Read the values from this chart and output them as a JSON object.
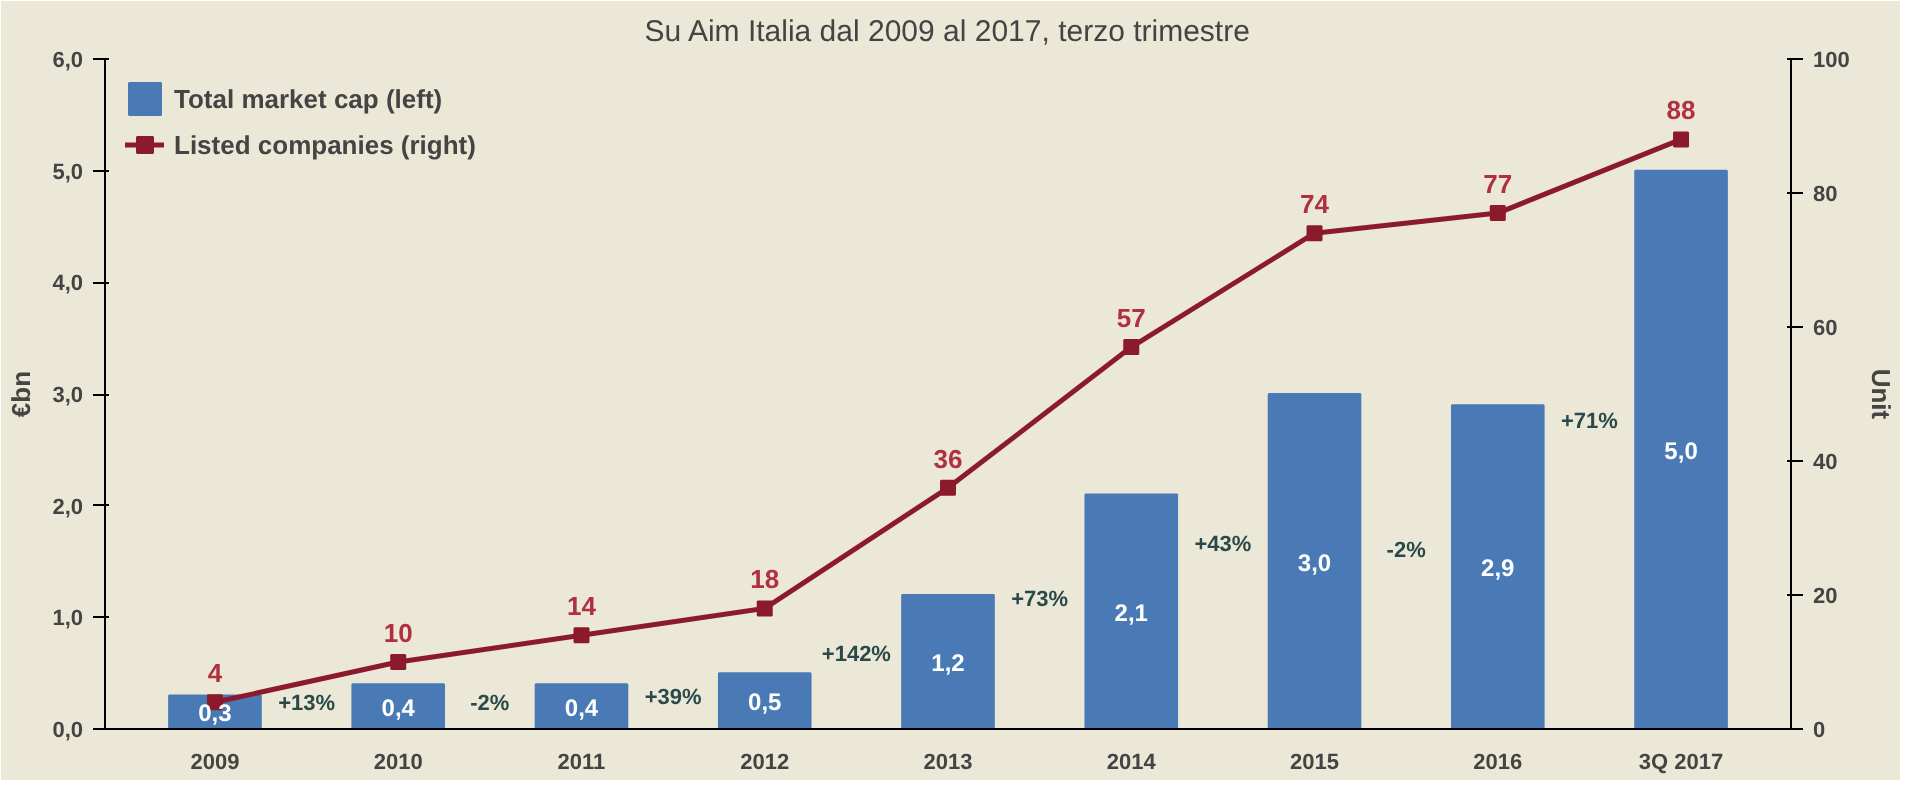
{
  "chart_data": {
    "type": "bar",
    "subtitle": "Su Aim Italia dal 2009 al 2017, terzo trimestre",
    "ylabel": "€bn",
    "y2label": "Unit",
    "categories": [
      "2009",
      "2010",
      "2011",
      "2012",
      "2013",
      "2014",
      "2015",
      "2016",
      "3Q 2017"
    ],
    "series": [
      {
        "name": "Total market cap (left)",
        "color": "#4a7ab5",
        "values": [
          0.3,
          0.4,
          0.4,
          0.5,
          1.2,
          2.1,
          3.0,
          2.9,
          5.0
        ],
        "value_labels": [
          "0,3",
          "0,4",
          "0,4",
          "0,5",
          "1,2",
          "2,1",
          "3,0",
          "2,9",
          "5,0"
        ]
      },
      {
        "name": "Listed companies (right)",
        "type": "line",
        "axis": "y2",
        "color": "#8b1a2a",
        "marker": "square",
        "values": [
          4,
          10,
          14,
          18,
          36,
          57,
          74,
          77,
          88
        ],
        "value_labels": [
          "4",
          "10",
          "14",
          "18",
          "36",
          "57",
          "74",
          "77",
          "88"
        ]
      }
    ],
    "ylim": [
      0,
      6
    ],
    "yticks": [
      {
        "value": 0,
        "label": "0,0"
      },
      {
        "value": 1,
        "label": "1,0"
      },
      {
        "value": 2,
        "label": "2,0"
      },
      {
        "value": 3,
        "label": "3,0"
      },
      {
        "value": 4,
        "label": "4,0"
      },
      {
        "value": 5,
        "label": "5,0"
      },
      {
        "value": 6,
        "label": "6,0"
      }
    ],
    "y2lim": [
      0,
      100
    ],
    "y2ticks": [
      0,
      20,
      40,
      60,
      80,
      100
    ],
    "annotations": [
      "+13%",
      "-2%",
      "+39%",
      "+142%",
      "+73%",
      "+43%",
      "-2%",
      "+71%"
    ],
    "legend": "top left",
    "grid": false
  }
}
